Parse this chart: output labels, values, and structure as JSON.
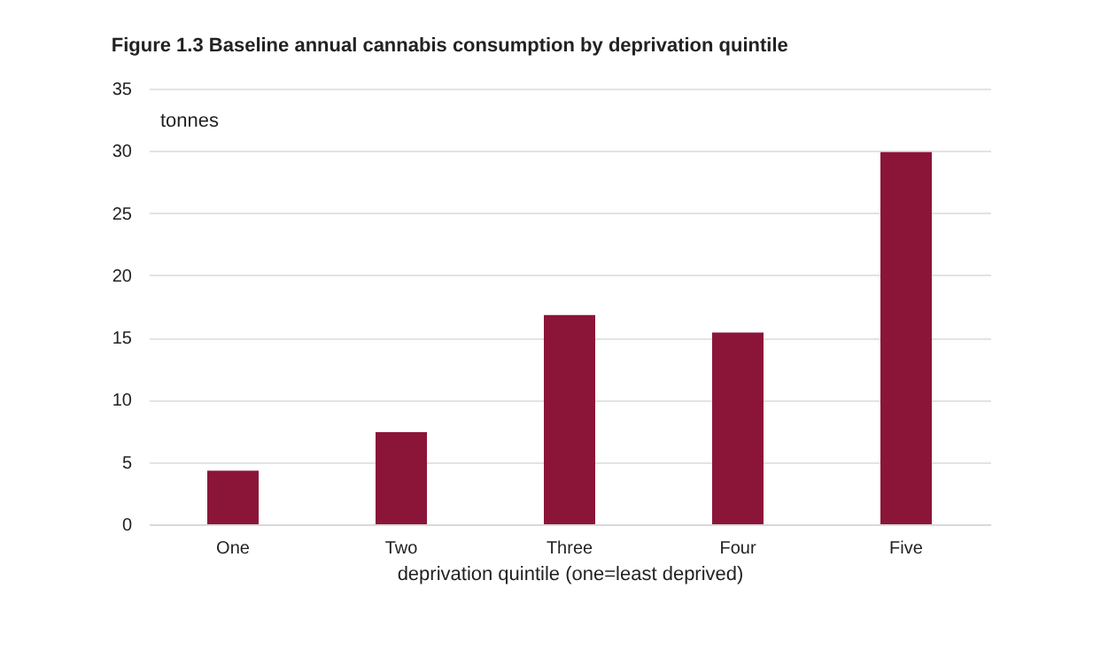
{
  "chart_data": {
    "type": "bar",
    "title": "Figure 1.3 Baseline annual cannabis consumption by deprivation quintile",
    "xlabel": "deprivation quintile (one=least deprived)",
    "ylabel": "tonnes",
    "categories": [
      "One",
      "Two",
      "Three",
      "Four",
      "Five"
    ],
    "values": [
      4.3,
      7.4,
      16.8,
      15.4,
      29.9
    ],
    "color": "#8b1538",
    "ylim": [
      0,
      35
    ],
    "yticks": [
      0,
      5,
      10,
      15,
      20,
      25,
      30,
      35
    ],
    "grid": "y"
  }
}
